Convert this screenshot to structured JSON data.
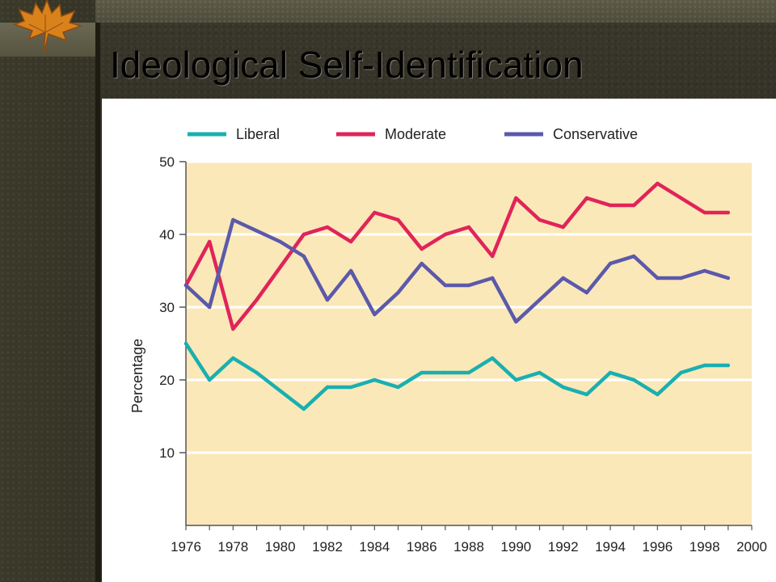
{
  "slide": {
    "title": "Ideological Self-Identification"
  },
  "colors": {
    "plot_background": "#fbe8b8",
    "gridline": "#ffffff",
    "axis": "#555555"
  },
  "chart_data": {
    "type": "line",
    "title": "",
    "xlabel": "",
    "ylabel": "Percentage",
    "x": [
      1976,
      1977,
      1978,
      1979,
      1980,
      1981,
      1982,
      1983,
      1984,
      1985,
      1986,
      1987,
      1988,
      1989,
      1990,
      1991,
      1992,
      1993,
      1994,
      1995,
      1996,
      1997,
      1998,
      1999
    ],
    "xlim": [
      1976,
      2000
    ],
    "ylim": [
      0,
      50
    ],
    "x_ticks": [
      "1976",
      "1978",
      "1980",
      "1982",
      "1984",
      "1986",
      "1988",
      "1990",
      "1992",
      "1994",
      "1996",
      "1998",
      "2000"
    ],
    "y_ticks": [
      "10",
      "20",
      "30",
      "40",
      "50"
    ],
    "grid": "horizontal",
    "legend_position": "top",
    "series": [
      {
        "name": "Liberal",
        "color": "#1aafb0",
        "values": [
          25,
          20,
          23,
          21,
          18.5,
          16,
          19,
          19,
          20,
          19,
          21,
          21,
          21,
          23,
          20,
          21,
          19,
          18,
          21,
          20,
          18,
          21,
          22,
          22
        ]
      },
      {
        "name": "Moderate",
        "color": "#e0245a",
        "values": [
          33,
          39,
          27,
          31,
          35.5,
          40,
          41,
          39,
          43,
          42,
          38,
          40,
          41,
          37,
          45,
          42,
          41,
          45,
          44,
          44,
          47,
          45,
          43,
          43
        ]
      },
      {
        "name": "Conservative",
        "color": "#5b59ab",
        "values": [
          33,
          30,
          42,
          40.5,
          39,
          37,
          31,
          35,
          29,
          32,
          36,
          33,
          33,
          34,
          28,
          31,
          34,
          32,
          36,
          37,
          34,
          34,
          35,
          34
        ]
      }
    ]
  }
}
